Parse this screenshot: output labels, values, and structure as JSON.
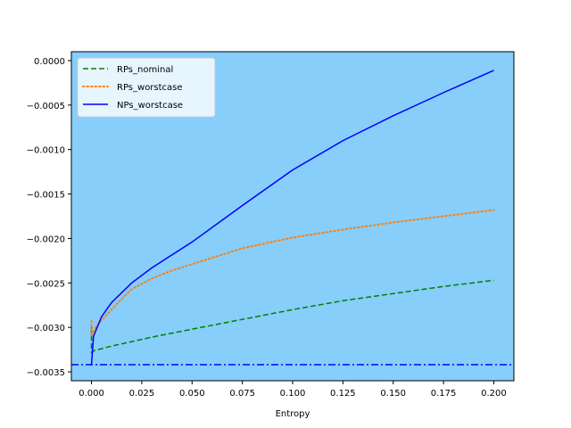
{
  "chart_data": {
    "type": "line",
    "title": "",
    "xlabel": "Entropy",
    "ylabel": "",
    "xlim": [
      -0.01,
      0.21
    ],
    "ylim": [
      -0.0036,
      0.0001
    ],
    "background_color": "#87cefa",
    "grid": false,
    "legend_position": "top-left",
    "x_ticks": [
      0.0,
      0.025,
      0.05,
      0.075,
      0.1,
      0.125,
      0.15,
      0.175,
      0.2
    ],
    "x_tick_labels": [
      "0.000",
      "0.025",
      "0.050",
      "0.075",
      "0.100",
      "0.125",
      "0.150",
      "0.175",
      "0.200"
    ],
    "y_ticks": [
      0.0,
      -0.0005,
      -0.001,
      -0.0015,
      -0.002,
      -0.0025,
      -0.003,
      -0.0035
    ],
    "y_tick_labels": [
      "0.0000",
      "−0.0005",
      "−0.0010",
      "−0.0015",
      "−0.0020",
      "−0.0025",
      "−0.0030",
      "−0.0035"
    ],
    "series": [
      {
        "name": "RPs_nominal",
        "color": "#008000",
        "style": "dashed",
        "x": [
          0.0,
          0.0,
          0.0005,
          0.002,
          0.005,
          0.01,
          0.02,
          0.03,
          0.05,
          0.075,
          0.1,
          0.125,
          0.15,
          0.175,
          0.2
        ],
        "y": [
          -0.003,
          -0.00328,
          -0.00327,
          -0.003255,
          -0.00324,
          -0.00321,
          -0.00316,
          -0.00311,
          -0.00302,
          -0.00291,
          -0.0028,
          -0.0027,
          -0.00262,
          -0.00254,
          -0.00247
        ]
      },
      {
        "name": "RPs_worstcase",
        "color": "#ff7f0e",
        "style": "dotted",
        "x": [
          0.0,
          0.0,
          0.002,
          0.005,
          0.01,
          0.015,
          0.02,
          0.03,
          0.04,
          0.05,
          0.075,
          0.1,
          0.125,
          0.15,
          0.175,
          0.2
        ],
        "y": [
          -0.00293,
          -0.0031,
          -0.003,
          -0.00292,
          -0.0028,
          -0.00268,
          -0.00257,
          -0.00245,
          -0.00236,
          -0.00229,
          -0.00211,
          -0.00199,
          -0.0019,
          -0.00182,
          -0.00175,
          -0.00168
        ]
      },
      {
        "name": "NPs_worstcase",
        "color": "#0000ff",
        "style": "solid",
        "x": [
          0.0,
          0.001,
          0.005,
          0.01,
          0.02,
          0.03,
          0.05,
          0.075,
          0.1,
          0.125,
          0.15,
          0.175,
          0.2
        ],
        "y": [
          -0.00342,
          -0.0031,
          -0.00288,
          -0.00272,
          -0.0025,
          -0.00233,
          -0.00204,
          -0.00163,
          -0.00123,
          -0.0009,
          -0.00062,
          -0.00036,
          -0.00011
        ]
      },
      {
        "name": "",
        "color": "#0000ff",
        "style": "dashdot",
        "x": [
          -0.01,
          0.21
        ],
        "y": [
          -0.00342,
          -0.00342
        ]
      }
    ]
  }
}
